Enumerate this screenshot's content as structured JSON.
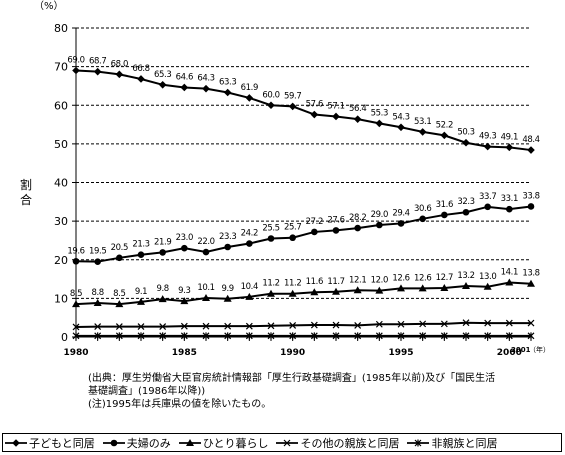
{
  "chart_data": {
    "type": "line",
    "ylabel": "割合",
    "yunit": "（%）",
    "ylim": [
      0,
      80
    ],
    "yticks": [
      0,
      10,
      20,
      30,
      40,
      50,
      60,
      70,
      80
    ],
    "xlim": [
      1980,
      2001
    ],
    "xticks": [
      "1980",
      "1985",
      "1990",
      "1995",
      "2000"
    ],
    "x_end_label": "2001",
    "x_unit": "（年）",
    "grid": "horizontal-dashed",
    "legend_position": "bottom",
    "x": [
      1980,
      1981,
      1982,
      1983,
      1984,
      1985,
      1986,
      1987,
      1988,
      1989,
      1990,
      1991,
      1992,
      1993,
      1994,
      1995,
      1996,
      1997,
      1998,
      1999,
      2000,
      2001
    ],
    "series": [
      {
        "name": "子どもと同居",
        "marker": "diamond",
        "show_labels": true,
        "values": [
          69.0,
          68.7,
          68.0,
          66.8,
          65.3,
          64.6,
          64.3,
          63.3,
          61.9,
          60.0,
          59.7,
          57.6,
          57.1,
          56.4,
          55.3,
          54.3,
          53.1,
          52.2,
          50.3,
          49.3,
          49.1,
          48.4
        ]
      },
      {
        "name": "夫婦のみ",
        "marker": "circle",
        "show_labels": true,
        "values": [
          19.6,
          19.5,
          20.5,
          21.3,
          21.9,
          23.0,
          22.0,
          23.3,
          24.2,
          25.5,
          25.7,
          27.2,
          27.6,
          28.2,
          29.0,
          29.4,
          30.6,
          31.6,
          32.3,
          33.7,
          33.1,
          33.8
        ]
      },
      {
        "name": "ひとり暮らし",
        "marker": "triangle",
        "show_labels": true,
        "values": [
          8.5,
          8.8,
          8.5,
          9.1,
          9.8,
          9.3,
          10.1,
          9.9,
          10.4,
          11.2,
          11.2,
          11.6,
          11.7,
          12.1,
          12.0,
          12.6,
          12.6,
          12.7,
          13.2,
          13.0,
          14.1,
          13.8
        ]
      },
      {
        "name": "その他の親族と同居",
        "marker": "x",
        "show_labels": false,
        "values": [
          2.6,
          2.7,
          2.7,
          2.7,
          2.7,
          2.8,
          2.8,
          2.8,
          2.8,
          2.9,
          3.0,
          3.1,
          3.1,
          3.0,
          3.3,
          3.3,
          3.4,
          3.4,
          3.7,
          3.6,
          3.6,
          3.6
        ]
      },
      {
        "name": "非親族と同居",
        "marker": "asterisk",
        "show_labels": false,
        "values": [
          0.3,
          0.3,
          0.3,
          0.3,
          0.3,
          0.3,
          0.3,
          0.3,
          0.3,
          0.3,
          0.3,
          0.3,
          0.3,
          0.3,
          0.3,
          0.3,
          0.3,
          0.3,
          0.3,
          0.3,
          0.3,
          0.3
        ]
      }
    ]
  },
  "notes": [
    "(出典：厚生労働省大臣官房統計情報部「厚生行政基礎調査」(1985年以前)及び「国民生活",
    "基礎調査」(1986年以降))",
    "(注)1995年は兵庫県の値を除いたもの。"
  ]
}
